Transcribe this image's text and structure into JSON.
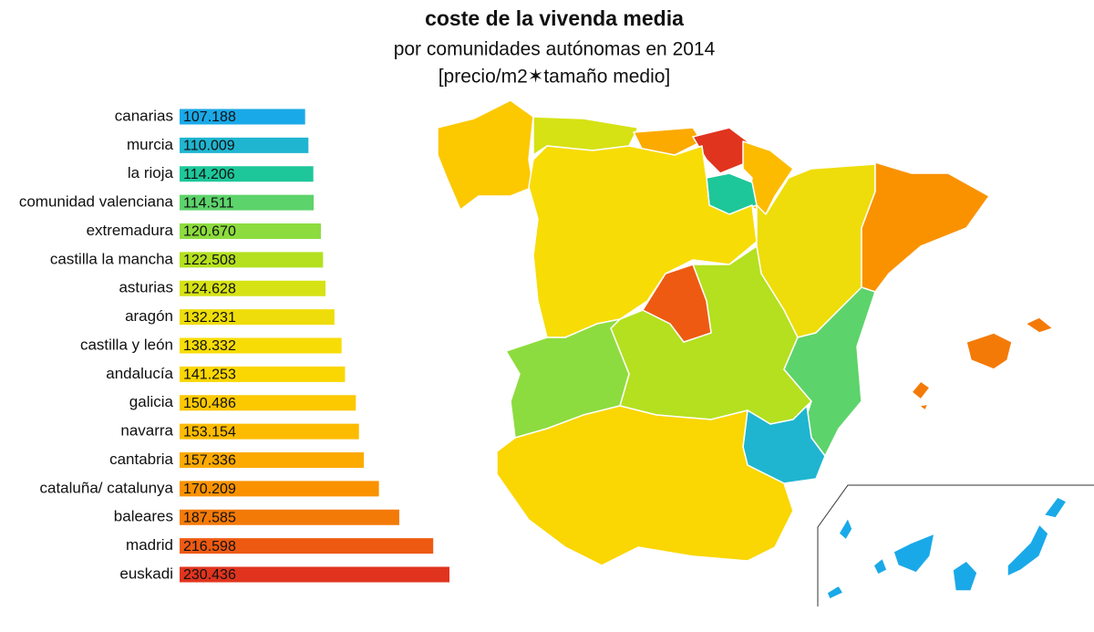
{
  "chart_data": {
    "type": "bar",
    "orientation": "horizontal",
    "title": "coste de la vivenda media",
    "subtitle": [
      "por comunidades autónomas en 2014",
      "[precio/m2✶tamaño medio]"
    ],
    "categories": [
      "canarias",
      "murcia",
      "la rioja",
      "comunidad valenciana",
      "extremadura",
      "castilla la mancha",
      "asturias",
      "aragón",
      "castilla y león",
      "andalucía",
      "galicia",
      "navarra",
      "cantabria",
      "cataluña/ catalunya",
      "baleares",
      "madrid",
      "euskadi"
    ],
    "values": [
      107188,
      110009,
      114206,
      114511,
      120670,
      122508,
      124628,
      132231,
      138332,
      141253,
      150486,
      153154,
      157336,
      170209,
      187585,
      216598,
      230436
    ],
    "value_labels": [
      "107.188",
      "110.009",
      "114.206",
      "114.511",
      "120.670",
      "122.508",
      "124.628",
      "132.231",
      "138.332",
      "141.253",
      "150.486",
      "153.154",
      "157.336",
      "170.209",
      "187.585",
      "216.598",
      "230.436"
    ],
    "colors": [
      "#1aa9e8",
      "#1fb5d0",
      "#1ec79a",
      "#5dd36b",
      "#8ddc3f",
      "#b4e01f",
      "#d6e214",
      "#eedd0a",
      "#f7dc06",
      "#fad602",
      "#fcc800",
      "#fdbb00",
      "#fcaa00",
      "#fa9200",
      "#f47a08",
      "#ee5a12",
      "#e0341e"
    ]
  }
}
